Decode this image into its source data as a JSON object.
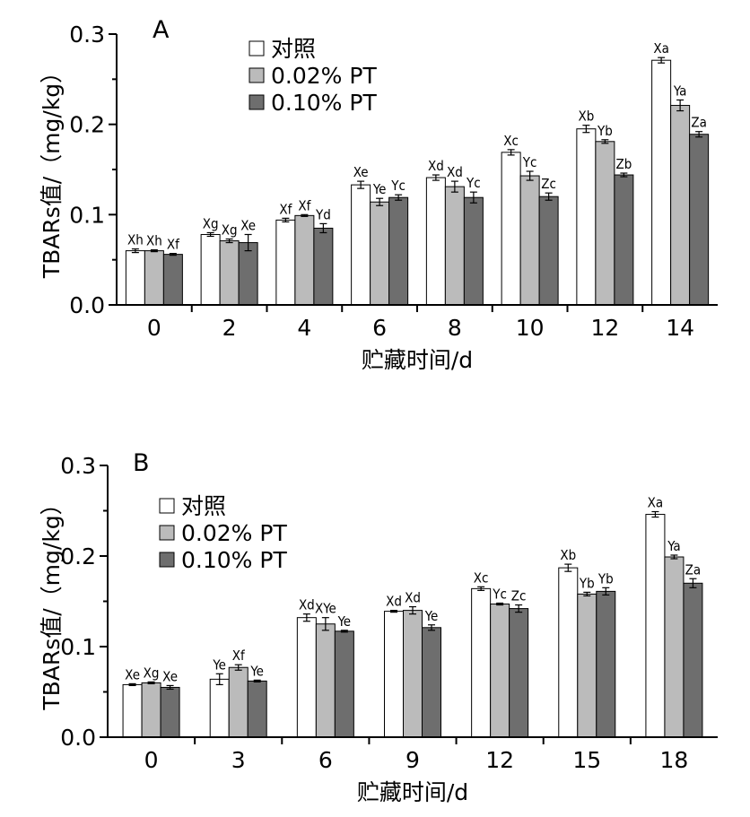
{
  "colors": {
    "control": "#ffffff",
    "pt002": "#bbbbbb",
    "pt010": "#6e6e6e"
  },
  "chart_data": [
    {
      "type": "bar",
      "panel": "A",
      "xlabel": "贮藏时间/d",
      "ylabel": "TBARs值/（mg/kg）",
      "ylim": [
        0,
        0.3
      ],
      "yticks": [
        "0.0",
        "0.1",
        "0.2",
        "0.3"
      ],
      "categories": [
        "0",
        "2",
        "4",
        "6",
        "8",
        "10",
        "12",
        "14"
      ],
      "legend": {
        "position": "top-center"
      },
      "series": [
        {
          "name": "对照",
          "color": "#ffffff",
          "values": [
            0.06,
            0.078,
            0.094,
            0.133,
            0.141,
            0.169,
            0.195,
            0.271
          ],
          "errors": [
            0.002,
            0.002,
            0.002,
            0.004,
            0.003,
            0.003,
            0.004,
            0.003
          ],
          "labels": [
            "Xh",
            "Xg",
            "Xf",
            "Xe",
            "Xd",
            "Xc",
            "Xb",
            "Xa"
          ]
        },
        {
          "name": "0.02% PT",
          "color": "#bbbbbb",
          "values": [
            0.06,
            0.071,
            0.099,
            0.114,
            0.131,
            0.143,
            0.181,
            0.221
          ],
          "errors": [
            0.001,
            0.002,
            0.001,
            0.004,
            0.006,
            0.005,
            0.002,
            0.006
          ],
          "labels": [
            "Xh",
            "Xg",
            "Xf",
            "Ye",
            "Xd",
            "Yc",
            "Yb",
            "Ya"
          ]
        },
        {
          "name": "0.10% PT",
          "color": "#6e6e6e",
          "values": [
            0.056,
            0.069,
            0.085,
            0.119,
            0.119,
            0.12,
            0.144,
            0.189
          ],
          "errors": [
            0.001,
            0.009,
            0.005,
            0.003,
            0.006,
            0.004,
            0.002,
            0.003
          ],
          "labels": [
            "Xf",
            "Xe",
            "Yd",
            "Yc",
            "Yc",
            "Zc",
            "Zb",
            "Za"
          ]
        }
      ]
    },
    {
      "type": "bar",
      "panel": "B",
      "xlabel": "贮藏时间/d",
      "ylabel": "TBARs值/（mg/kg）",
      "ylim": [
        0,
        0.3
      ],
      "yticks": [
        "0.0",
        "0.1",
        "0.2",
        "0.3"
      ],
      "categories": [
        "0",
        "3",
        "6",
        "9",
        "12",
        "15",
        "18"
      ],
      "legend": {
        "position": "top-left"
      },
      "series": [
        {
          "name": "对照",
          "color": "#ffffff",
          "values": [
            0.058,
            0.064,
            0.132,
            0.139,
            0.164,
            0.187,
            0.246
          ],
          "errors": [
            0.001,
            0.006,
            0.004,
            0.001,
            0.002,
            0.004,
            0.003
          ],
          "labels": [
            "Xe",
            "Ye",
            "Xd",
            "Xd",
            "Xc",
            "Xb",
            "Xa"
          ]
        },
        {
          "name": "0.02% PT",
          "color": "#bbbbbb",
          "values": [
            0.06,
            0.077,
            0.125,
            0.14,
            0.147,
            0.158,
            0.199
          ],
          "errors": [
            0.001,
            0.003,
            0.007,
            0.004,
            0.001,
            0.002,
            0.002
          ],
          "labels": [
            "Xg",
            "Xf",
            "XYe",
            "Xd",
            "Yc",
            "Yb",
            "Ya"
          ]
        },
        {
          "name": "0.10% PT",
          "color": "#6e6e6e",
          "values": [
            0.055,
            0.062,
            0.117,
            0.121,
            0.142,
            0.161,
            0.17
          ],
          "errors": [
            0.002,
            0.001,
            0.001,
            0.003,
            0.004,
            0.004,
            0.005
          ],
          "labels": [
            "Xe",
            "Ye",
            "Ye",
            "Ye",
            "Zc",
            "Yb",
            "Za"
          ]
        }
      ]
    }
  ]
}
